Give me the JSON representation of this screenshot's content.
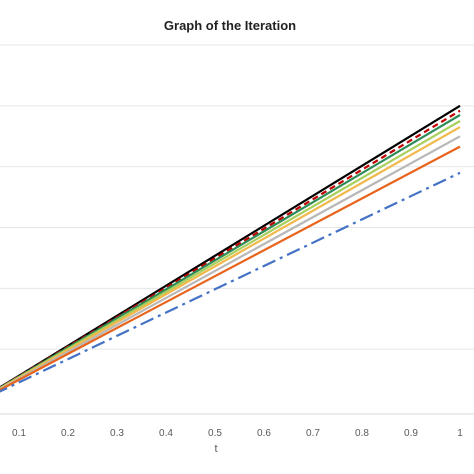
{
  "chart_data": {
    "type": "line",
    "title": "Graph of the Iteration",
    "xlabel": "t",
    "ylabel": "",
    "xlim": [
      0,
      1
    ],
    "ylim": [
      0,
      6
    ],
    "x_ticks": [
      "0.1",
      "0.2",
      "0.3",
      "0.4",
      "0.5",
      "0.6",
      "0.7",
      "0.8",
      "0.9",
      "1"
    ],
    "grid": true,
    "legend": "none",
    "x": [
      0,
      1
    ],
    "series": [
      {
        "values": [
          0.07,
          5.0
        ],
        "color": "#000000",
        "dash": "solid"
      },
      {
        "values": [
          0.07,
          4.92
        ],
        "color": "#c00000",
        "dash": "dash"
      },
      {
        "values": [
          0.07,
          4.85
        ],
        "color": "#2e8b57",
        "dash": "solid"
      },
      {
        "values": [
          0.07,
          4.75
        ],
        "color": "#a9cf5c",
        "dash": "solid"
      },
      {
        "values": [
          0.07,
          4.65
        ],
        "color": "#f2b84b",
        "dash": "solid"
      },
      {
        "values": [
          0.07,
          4.5
        ],
        "color": "#b8b8b8",
        "dash": "solid"
      },
      {
        "values": [
          0.07,
          4.33
        ],
        "color": "#e8641c",
        "dash": "solid"
      },
      {
        "values": [
          0.07,
          3.9
        ],
        "color": "#4472c4",
        "dash": "dashdot"
      }
    ]
  }
}
